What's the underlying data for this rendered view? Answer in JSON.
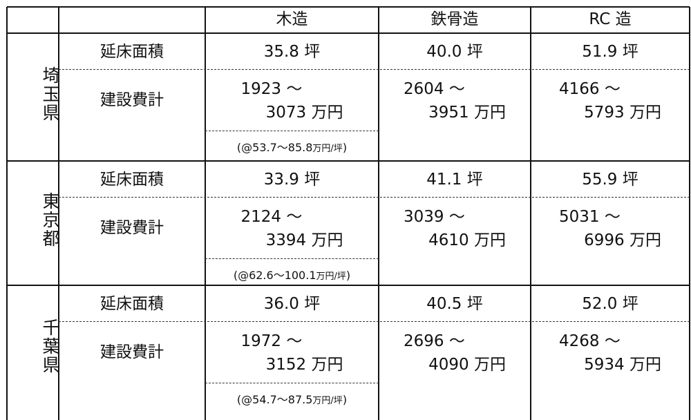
{
  "table": {
    "columns": [
      "木造",
      "鉄骨造",
      "RC 造"
    ],
    "sections": [
      {
        "region": "埼玉県",
        "area_label": "延床面積",
        "cost_label": "建設費計",
        "area": [
          "35.8 坪",
          "40.0 坪",
          "51.9 坪"
        ],
        "cost": [
          [
            "1923 ～",
            "3073 万円"
          ],
          [
            "2604 ～",
            "3951 万円"
          ],
          [
            "4166 ～",
            "5793 万円"
          ]
        ],
        "unit_price": {
          "range": "(@53.7～85.8",
          "unit": "万円/坪",
          "close": ")"
        }
      },
      {
        "region": "東京都",
        "area_label": "延床面積",
        "cost_label": "建設費計",
        "area": [
          "33.9 坪",
          "41.1 坪",
          "55.9 坪"
        ],
        "cost": [
          [
            "2124 ～",
            "3394 万円"
          ],
          [
            "3039 ～",
            "4610 万円"
          ],
          [
            "5031 ～",
            "6996 万円"
          ]
        ],
        "unit_price": {
          "range": "(@62.6～100.1",
          "unit": "万円/坪",
          "close": ")"
        }
      },
      {
        "region": "千葉県",
        "area_label": "延床面積",
        "cost_label": "建設費計",
        "area": [
          "36.0 坪",
          "40.5 坪",
          "52.0 坪"
        ],
        "cost": [
          [
            "1972 ～",
            "3152 万円"
          ],
          [
            "2696 ～",
            "4090 万円"
          ],
          [
            "4268 ～",
            "5934 万円"
          ]
        ],
        "unit_price": {
          "range": "(@54.7～87.5",
          "unit": "万円/坪",
          "close": ")"
        }
      }
    ]
  }
}
